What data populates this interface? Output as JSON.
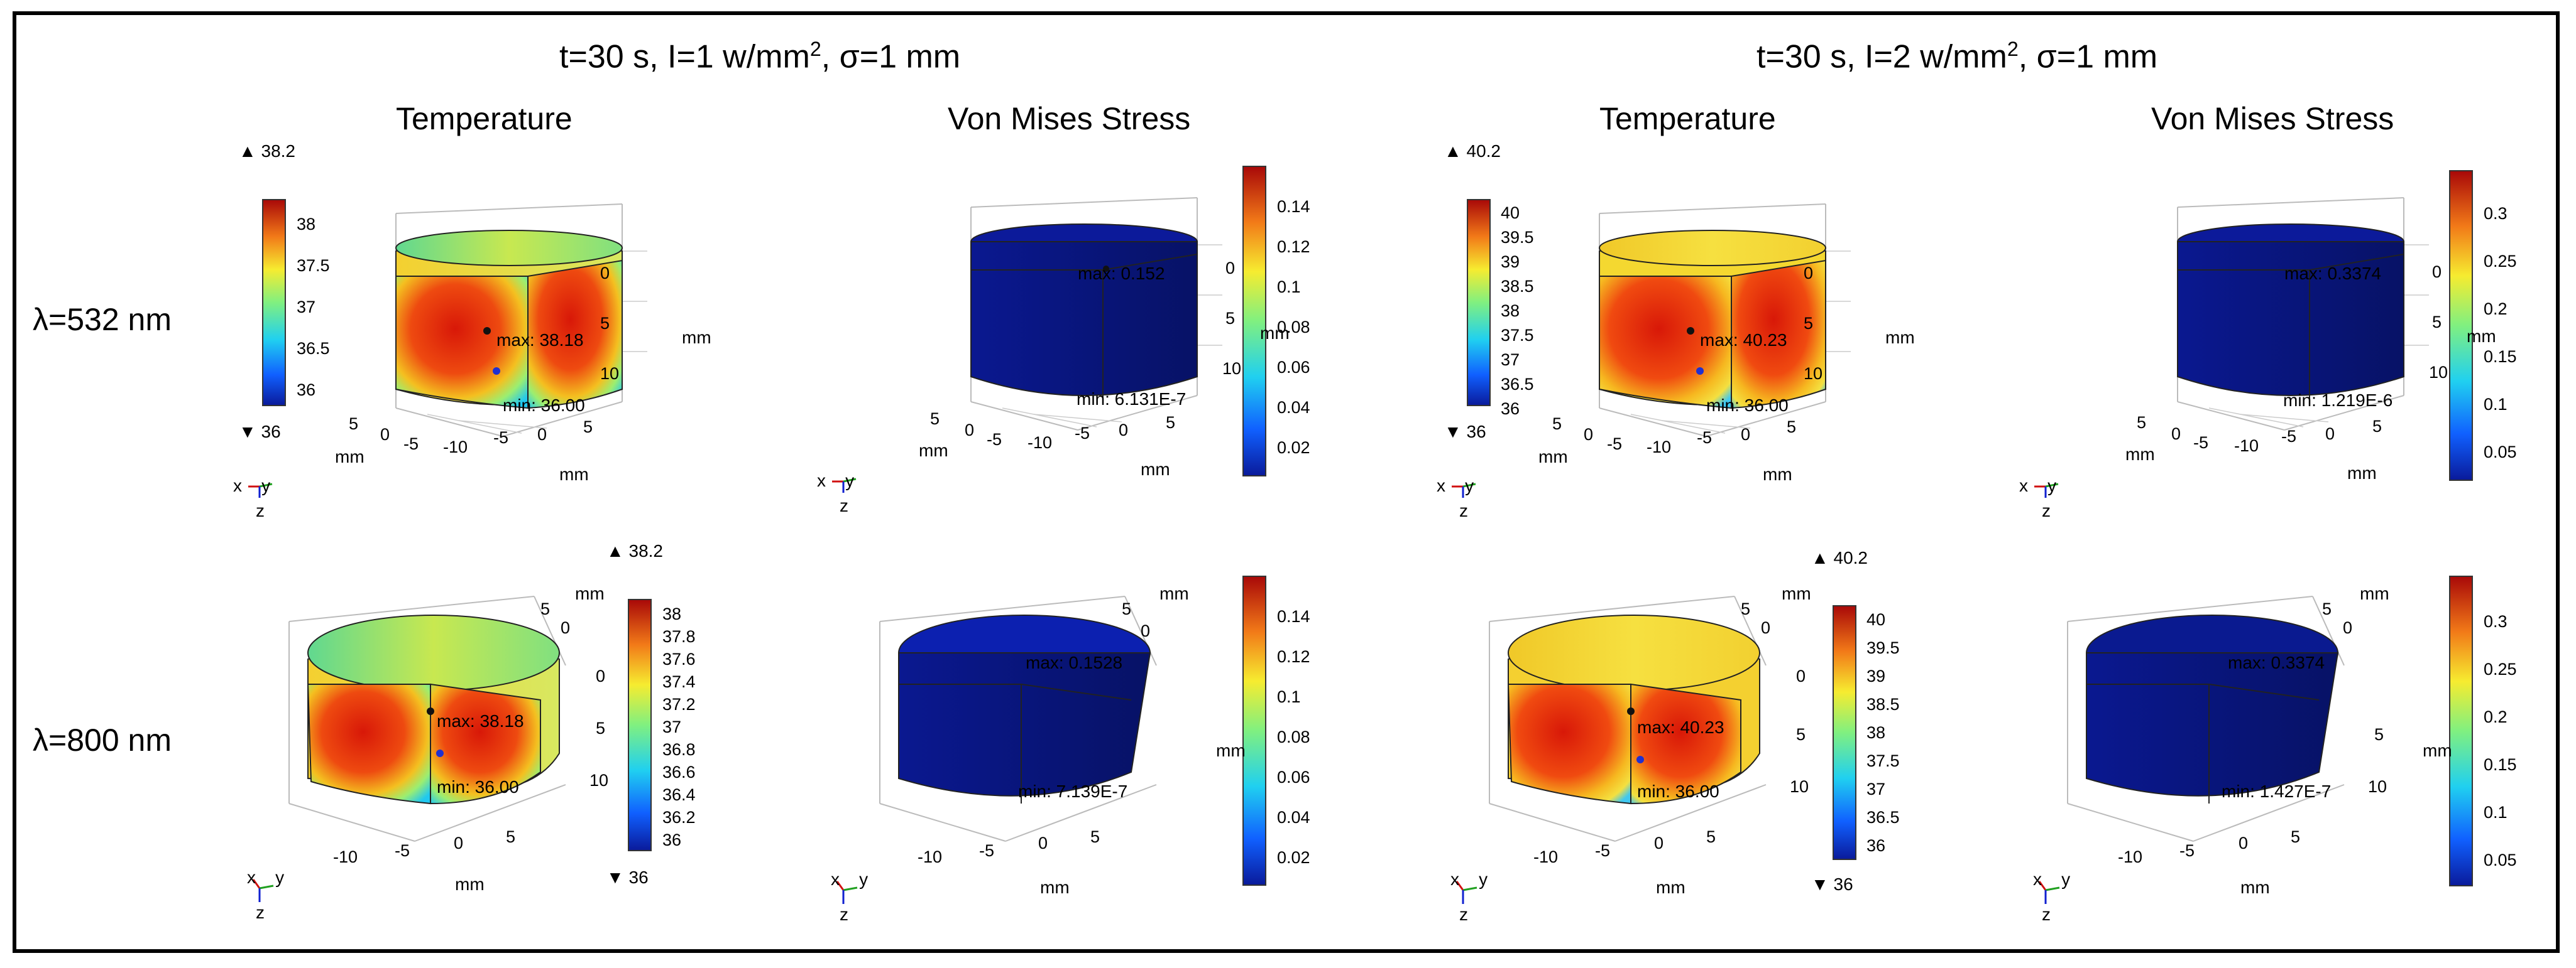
{
  "groups": [
    {
      "label": "t=30 s, I=1 w/mm",
      "sup": "2",
      "label_tail": ", σ=1 mm"
    },
    {
      "label": "t=30 s, I=2 w/mm",
      "sup": "2",
      "label_tail": ", σ=1 mm"
    }
  ],
  "columns": {
    "temperature": "Temperature",
    "stress": "Von Mises Stress"
  },
  "rows": [
    "λ=532 nm",
    "λ=800 nm"
  ],
  "units": "mm",
  "panels": [
    {
      "id": "p11",
      "title": "Temperature",
      "top": "38.2",
      "bottom": "36",
      "max": "max: 38.18",
      "min": "min: 36.00",
      "cbar_ticks": [
        "38",
        "37.5",
        "37",
        "36.5",
        "36"
      ],
      "axis_right": [
        "0",
        "5",
        "10"
      ],
      "axis_bottom": [
        "5",
        "0",
        "-5",
        "-10",
        "-5",
        "0",
        "5"
      ]
    },
    {
      "id": "p12",
      "title": "Von Mises Stress",
      "max": "max: 0.152",
      "min": "min: 6.131E-7",
      "cbar_ticks": [
        "0.14",
        "0.12",
        "0.1",
        "0.08",
        "0.06",
        "0.04",
        "0.02"
      ],
      "axis_right": [
        "0",
        "5",
        "10"
      ],
      "axis_bottom": [
        "5",
        "0",
        "-5",
        "-10",
        "-5",
        "0",
        "5"
      ]
    },
    {
      "id": "p13",
      "title": "Temperature",
      "top": "40.2",
      "bottom": "36",
      "max": "max: 40.23",
      "min": "min: 36.00",
      "cbar_ticks": [
        "40",
        "39.5",
        "39",
        "38.5",
        "38",
        "37.5",
        "37",
        "36.5",
        "36"
      ],
      "axis_right": [
        "0",
        "5",
        "10"
      ],
      "axis_bottom": [
        "5",
        "0",
        "-5",
        "-10",
        "-5",
        "0",
        "5"
      ]
    },
    {
      "id": "p14",
      "title": "Von Mises Stress",
      "max": "max: 0.3374",
      "min": "min: 1.219E-6",
      "cbar_ticks": [
        "0.3",
        "0.25",
        "0.2",
        "0.15",
        "0.1",
        "0.05"
      ],
      "axis_right": [
        "0",
        "5",
        "10"
      ],
      "axis_bottom": [
        "5",
        "0",
        "-5",
        "-10",
        "-5",
        "0",
        "5"
      ]
    },
    {
      "id": "p21",
      "title": "Temperature",
      "top": "38.2",
      "bottom": "36",
      "max": "max: 38.18",
      "min": "min: 36.00",
      "cbar_ticks": [
        "38",
        "37.8",
        "37.6",
        "37.4",
        "37.2",
        "37",
        "36.8",
        "36.6",
        "36.4",
        "36.2",
        "36"
      ],
      "axis_right": [
        "5",
        "0",
        "0",
        "5",
        "10"
      ],
      "axis_bottom": [
        "-10",
        "-5",
        "0",
        "5"
      ]
    },
    {
      "id": "p22",
      "title": "Von Mises Stress",
      "max": "max: 0.1528",
      "min": "min: 7.139E-7",
      "cbar_ticks": [
        "0.14",
        "0.12",
        "0.1",
        "0.08",
        "0.06",
        "0.04",
        "0.02"
      ],
      "axis_right": [
        "5",
        "0"
      ],
      "axis_bottom": [
        "-10",
        "-5",
        "0",
        "5"
      ]
    },
    {
      "id": "p23",
      "title": "Temperature",
      "top": "40.2",
      "bottom": "36",
      "max": "max: 40.23",
      "min": "min: 36.00",
      "cbar_ticks": [
        "40",
        "39.5",
        "39",
        "38.5",
        "38",
        "37.5",
        "37",
        "36.5",
        "36"
      ],
      "axis_right": [
        "5",
        "0",
        "0",
        "5",
        "10"
      ],
      "axis_bottom": [
        "-10",
        "-5",
        "0",
        "5"
      ]
    },
    {
      "id": "p24",
      "title": "Von Mises Stress",
      "max": "max: 0.3374",
      "min": "min: 1.427E-7",
      "cbar_ticks": [
        "0.3",
        "0.25",
        "0.2",
        "0.15",
        "0.1",
        "0.05"
      ],
      "axis_right": [
        "5",
        "0",
        "5",
        "10"
      ],
      "axis_bottom": [
        "-10",
        "-5",
        "0",
        "5"
      ]
    }
  ],
  "triad": {
    "x": "x",
    "y": "y",
    "z": "z"
  },
  "colors": {
    "navy": "#0a1a7a",
    "red": "#d62010",
    "yellow": "#f4e23a"
  }
}
